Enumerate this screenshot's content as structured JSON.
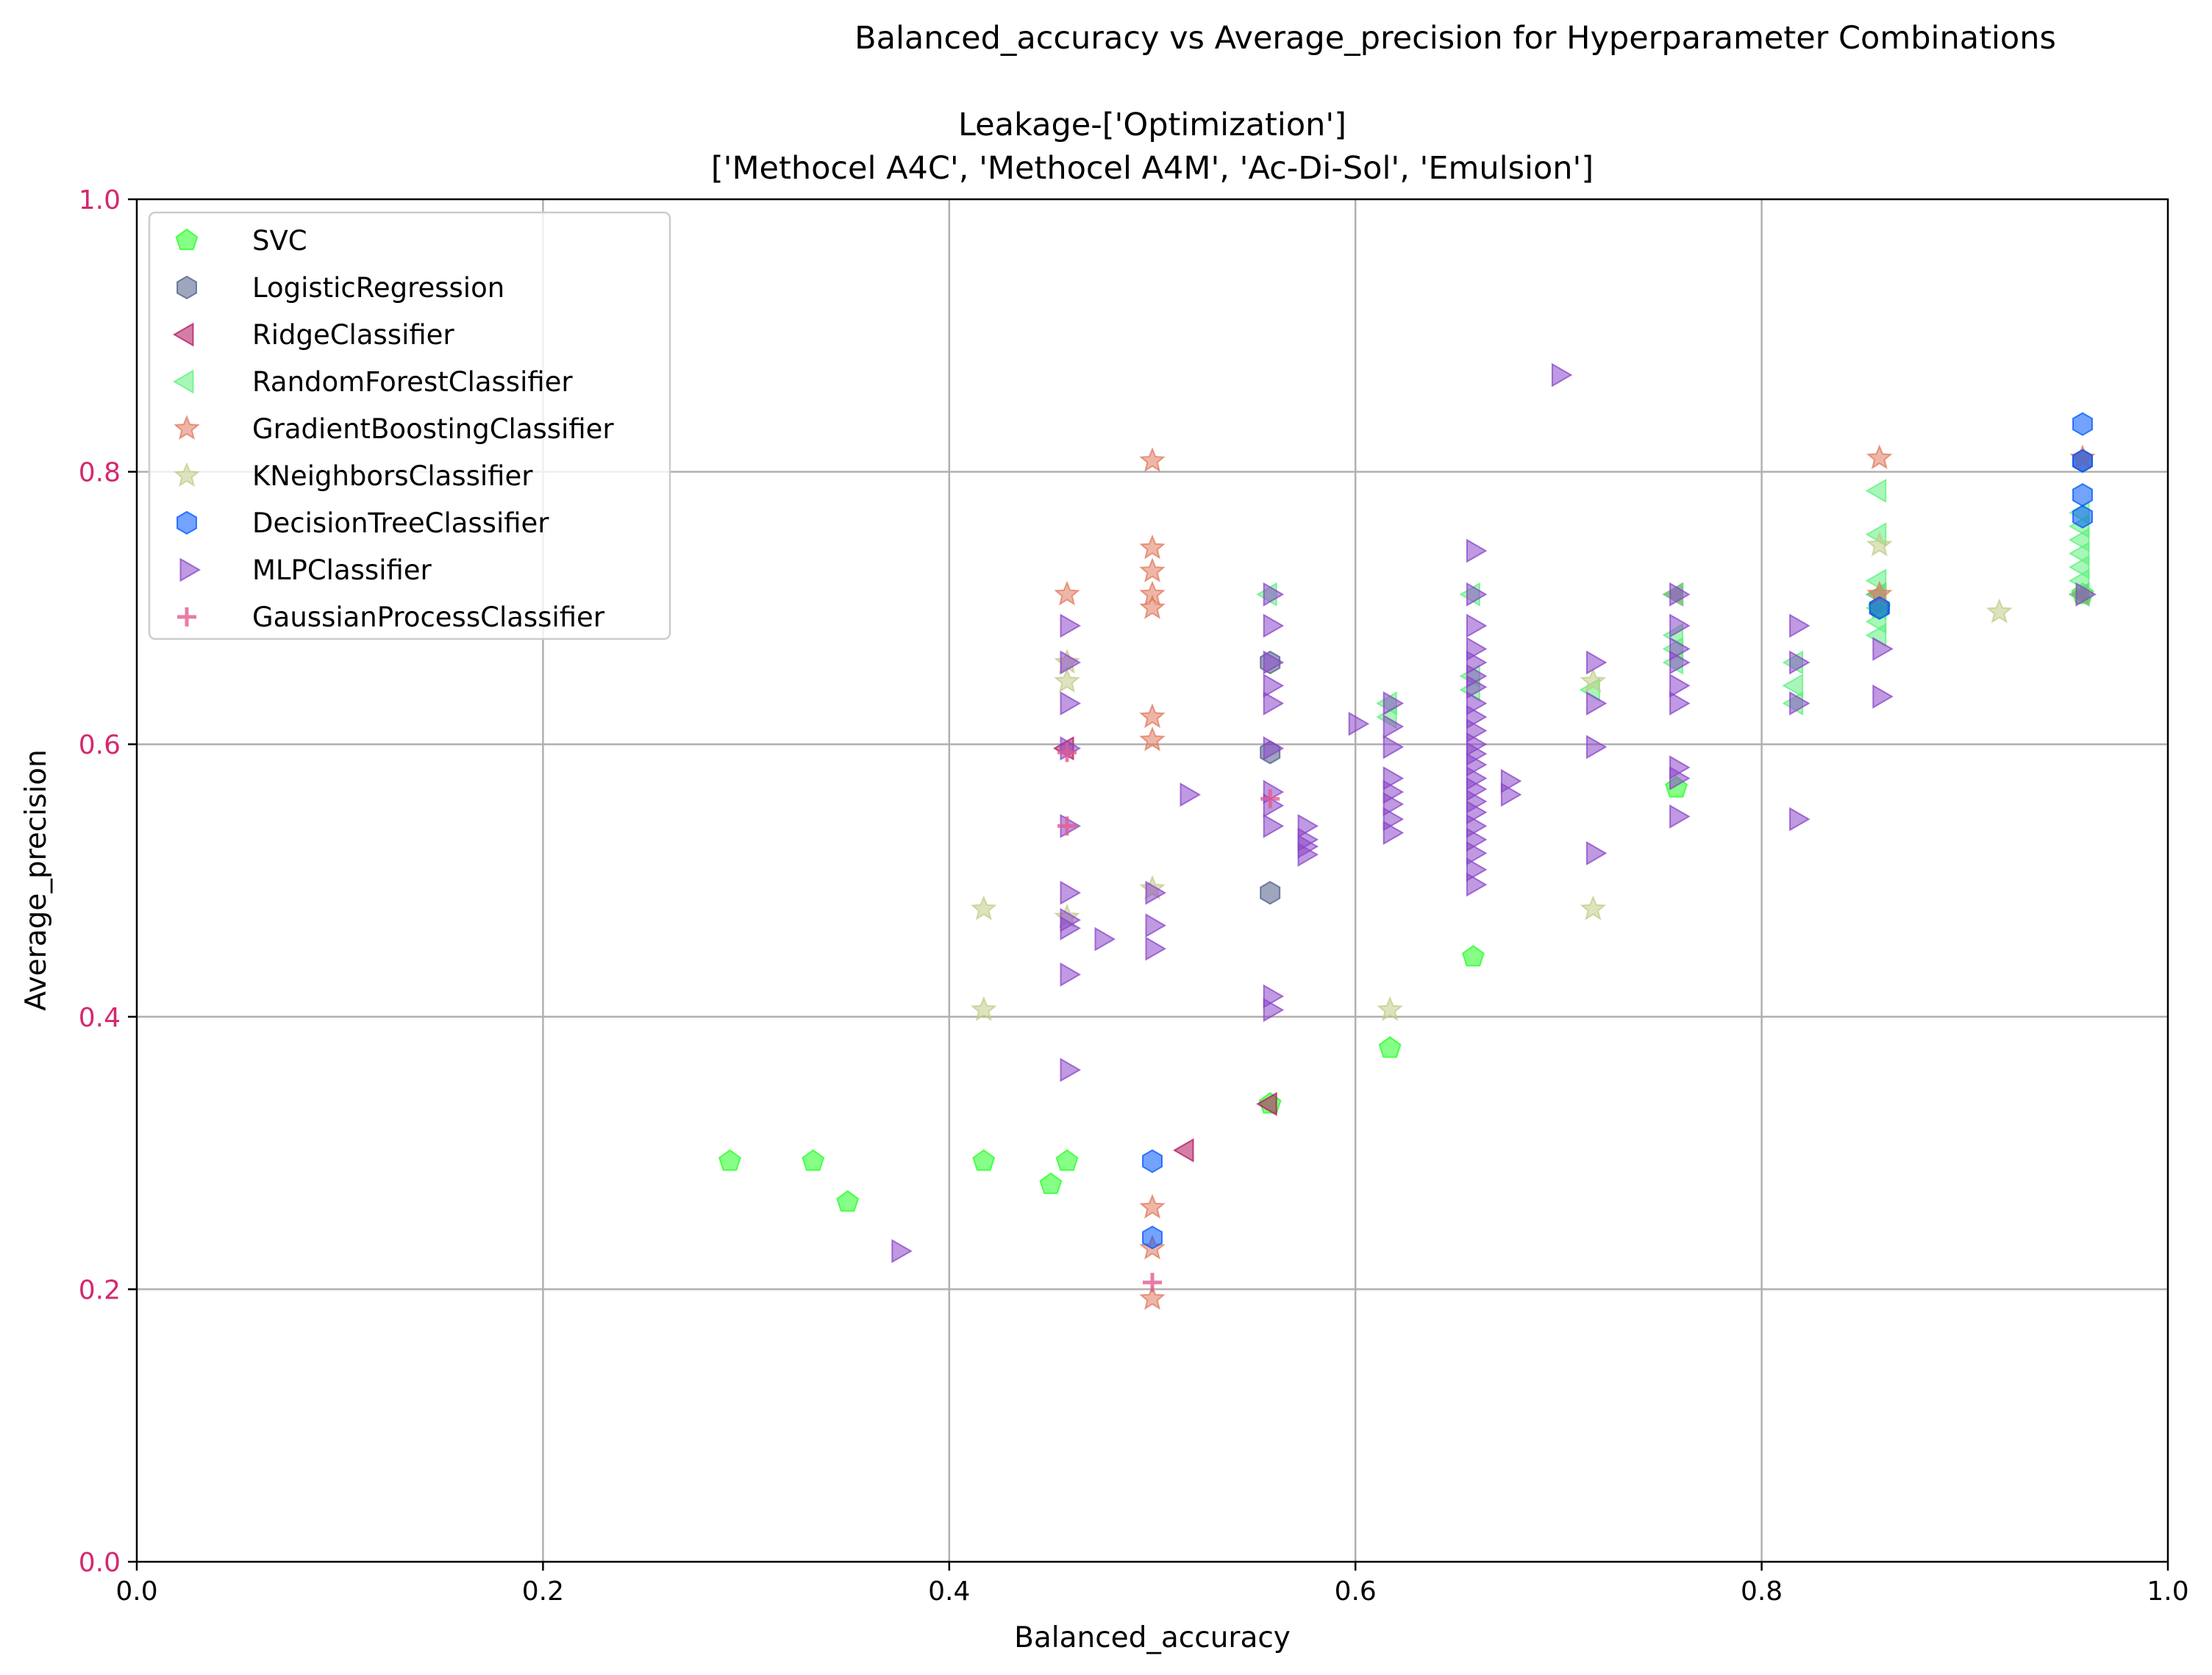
{
  "chart_data": {
    "type": "scatter",
    "suptitle": "Balanced_accuracy vs Average_precision for Hyperparameter Combinations",
    "title_line1": "Leakage-['Optimization']",
    "title_line2": "['Methocel A4C', 'Methocel A4M', 'Ac-Di-Sol', 'Emulsion']",
    "xlabel": "Balanced_accuracy",
    "ylabel": "Average_precision",
    "xlim": [
      0,
      1
    ],
    "ylim": [
      0,
      1
    ],
    "xticks": [
      "0.0",
      "0.2",
      "0.4",
      "0.6",
      "0.8",
      "1.0"
    ],
    "yticks": [
      "0.0",
      "0.2",
      "0.4",
      "0.6",
      "0.8",
      "1.0"
    ],
    "ytick_color": "#d62770",
    "grid": true,
    "legend_position": "upper-left",
    "series": [
      {
        "name": "SVC",
        "marker": "pentagon",
        "color": "#22ff22",
        "points": [
          [
            0.292,
            0.294
          ],
          [
            0.333,
            0.294
          ],
          [
            0.35,
            0.264
          ],
          [
            0.417,
            0.294
          ],
          [
            0.45,
            0.277
          ],
          [
            0.458,
            0.294
          ],
          [
            0.558,
            0.336
          ],
          [
            0.617,
            0.377
          ],
          [
            0.658,
            0.444
          ],
          [
            0.758,
            0.568
          ],
          [
            0.858,
            0.7
          ],
          [
            0.958,
            0.71
          ]
        ]
      },
      {
        "name": "LogisticRegression",
        "marker": "hexagon",
        "color": "#4f5d86",
        "points": [
          [
            0.558,
            0.491
          ],
          [
            0.558,
            0.66
          ],
          [
            0.558,
            0.594
          ],
          [
            0.858,
            0.7
          ],
          [
            0.958,
            0.808
          ]
        ]
      },
      {
        "name": "RidgeClassifier",
        "marker": "triangle-left",
        "color": "#b0145c",
        "points": [
          [
            0.517,
            0.302
          ],
          [
            0.558,
            0.336
          ],
          [
            0.458,
            0.597
          ],
          [
            0.758,
            0.71
          ],
          [
            0.858,
            0.71
          ],
          [
            0.958,
            0.71
          ]
        ]
      },
      {
        "name": "RandomForestClassifier",
        "marker": "triangle-left",
        "color": "#5ef07d",
        "points": [
          [
            0.558,
            0.71
          ],
          [
            0.617,
            0.63
          ],
          [
            0.617,
            0.62
          ],
          [
            0.658,
            0.71
          ],
          [
            0.658,
            0.65
          ],
          [
            0.658,
            0.64
          ],
          [
            0.717,
            0.64
          ],
          [
            0.758,
            0.71
          ],
          [
            0.758,
            0.68
          ],
          [
            0.758,
            0.67
          ],
          [
            0.758,
            0.66
          ],
          [
            0.817,
            0.66
          ],
          [
            0.817,
            0.643
          ],
          [
            0.817,
            0.63
          ],
          [
            0.858,
            0.786
          ],
          [
            0.858,
            0.754
          ],
          [
            0.858,
            0.72
          ],
          [
            0.858,
            0.71
          ],
          [
            0.858,
            0.7
          ],
          [
            0.858,
            0.69
          ],
          [
            0.858,
            0.68
          ],
          [
            0.958,
            0.77
          ],
          [
            0.958,
            0.76
          ],
          [
            0.958,
            0.75
          ],
          [
            0.958,
            0.74
          ],
          [
            0.958,
            0.73
          ],
          [
            0.958,
            0.72
          ],
          [
            0.958,
            0.71
          ]
        ]
      },
      {
        "name": "GradientBoostingClassifier",
        "marker": "star",
        "color": "#e07a5f",
        "points": [
          [
            0.458,
            0.71
          ],
          [
            0.5,
            0.808
          ],
          [
            0.5,
            0.744
          ],
          [
            0.5,
            0.727
          ],
          [
            0.5,
            0.71
          ],
          [
            0.5,
            0.7
          ],
          [
            0.5,
            0.62
          ],
          [
            0.5,
            0.603
          ],
          [
            0.5,
            0.26
          ],
          [
            0.5,
            0.23
          ],
          [
            0.5,
            0.193
          ],
          [
            0.858,
            0.81
          ],
          [
            0.858,
            0.71
          ],
          [
            0.958,
            0.81
          ]
        ]
      },
      {
        "name": "KNeighborsClassifier",
        "marker": "star",
        "color": "#c2cc88",
        "points": [
          [
            0.417,
            0.479
          ],
          [
            0.417,
            0.405
          ],
          [
            0.458,
            0.66
          ],
          [
            0.458,
            0.646
          ],
          [
            0.458,
            0.473
          ],
          [
            0.5,
            0.494
          ],
          [
            0.617,
            0.405
          ],
          [
            0.717,
            0.646
          ],
          [
            0.717,
            0.479
          ],
          [
            0.858,
            0.746
          ],
          [
            0.917,
            0.697
          ]
        ]
      },
      {
        "name": "DecisionTreeClassifier",
        "marker": "hexagon",
        "color": "#0055ff",
        "points": [
          [
            0.5,
            0.294
          ],
          [
            0.5,
            0.238
          ],
          [
            0.858,
            0.7
          ],
          [
            0.958,
            0.835
          ],
          [
            0.958,
            0.808
          ],
          [
            0.958,
            0.783
          ],
          [
            0.958,
            0.767
          ]
        ]
      },
      {
        "name": "MLPClassifier",
        "marker": "triangle-right",
        "color": "#8a45c8",
        "points": [
          [
            0.375,
            0.228
          ],
          [
            0.458,
            0.687
          ],
          [
            0.458,
            0.66
          ],
          [
            0.458,
            0.63
          ],
          [
            0.458,
            0.597
          ],
          [
            0.458,
            0.54
          ],
          [
            0.458,
            0.491
          ],
          [
            0.458,
            0.471
          ],
          [
            0.458,
            0.465
          ],
          [
            0.458,
            0.431
          ],
          [
            0.458,
            0.361
          ],
          [
            0.475,
            0.457
          ],
          [
            0.5,
            0.491
          ],
          [
            0.5,
            0.467
          ],
          [
            0.5,
            0.45
          ],
          [
            0.517,
            0.563
          ],
          [
            0.558,
            0.71
          ],
          [
            0.558,
            0.687
          ],
          [
            0.558,
            0.66
          ],
          [
            0.558,
            0.643
          ],
          [
            0.558,
            0.63
          ],
          [
            0.558,
            0.597
          ],
          [
            0.558,
            0.565
          ],
          [
            0.558,
            0.555
          ],
          [
            0.558,
            0.54
          ],
          [
            0.558,
            0.415
          ],
          [
            0.558,
            0.405
          ],
          [
            0.575,
            0.54
          ],
          [
            0.575,
            0.53
          ],
          [
            0.575,
            0.525
          ],
          [
            0.575,
            0.519
          ],
          [
            0.6,
            0.615
          ],
          [
            0.617,
            0.63
          ],
          [
            0.617,
            0.613
          ],
          [
            0.617,
            0.598
          ],
          [
            0.617,
            0.575
          ],
          [
            0.617,
            0.565
          ],
          [
            0.617,
            0.556
          ],
          [
            0.617,
            0.545
          ],
          [
            0.617,
            0.535
          ],
          [
            0.658,
            0.742
          ],
          [
            0.658,
            0.71
          ],
          [
            0.658,
            0.687
          ],
          [
            0.658,
            0.67
          ],
          [
            0.658,
            0.66
          ],
          [
            0.658,
            0.65
          ],
          [
            0.658,
            0.642
          ],
          [
            0.658,
            0.63
          ],
          [
            0.658,
            0.62
          ],
          [
            0.658,
            0.61
          ],
          [
            0.658,
            0.6
          ],
          [
            0.658,
            0.593
          ],
          [
            0.658,
            0.585
          ],
          [
            0.658,
            0.575
          ],
          [
            0.658,
            0.567
          ],
          [
            0.658,
            0.558
          ],
          [
            0.658,
            0.55
          ],
          [
            0.658,
            0.54
          ],
          [
            0.658,
            0.53
          ],
          [
            0.658,
            0.52
          ],
          [
            0.658,
            0.508
          ],
          [
            0.658,
            0.497
          ],
          [
            0.675,
            0.573
          ],
          [
            0.675,
            0.563
          ],
          [
            0.7,
            0.871
          ],
          [
            0.717,
            0.66
          ],
          [
            0.717,
            0.63
          ],
          [
            0.717,
            0.598
          ],
          [
            0.717,
            0.52
          ],
          [
            0.758,
            0.71
          ],
          [
            0.758,
            0.687
          ],
          [
            0.758,
            0.67
          ],
          [
            0.758,
            0.66
          ],
          [
            0.758,
            0.643
          ],
          [
            0.758,
            0.63
          ],
          [
            0.758,
            0.583
          ],
          [
            0.758,
            0.575
          ],
          [
            0.758,
            0.547
          ],
          [
            0.817,
            0.687
          ],
          [
            0.817,
            0.66
          ],
          [
            0.817,
            0.63
          ],
          [
            0.817,
            0.545
          ],
          [
            0.858,
            0.67
          ],
          [
            0.858,
            0.635
          ],
          [
            0.958,
            0.71
          ]
        ]
      },
      {
        "name": "GaussianProcessClassifier",
        "marker": "plus",
        "color": "#e35b8f",
        "points": [
          [
            0.458,
            0.594
          ],
          [
            0.458,
            0.54
          ],
          [
            0.5,
            0.205
          ],
          [
            0.558,
            0.56
          ]
        ]
      }
    ]
  }
}
